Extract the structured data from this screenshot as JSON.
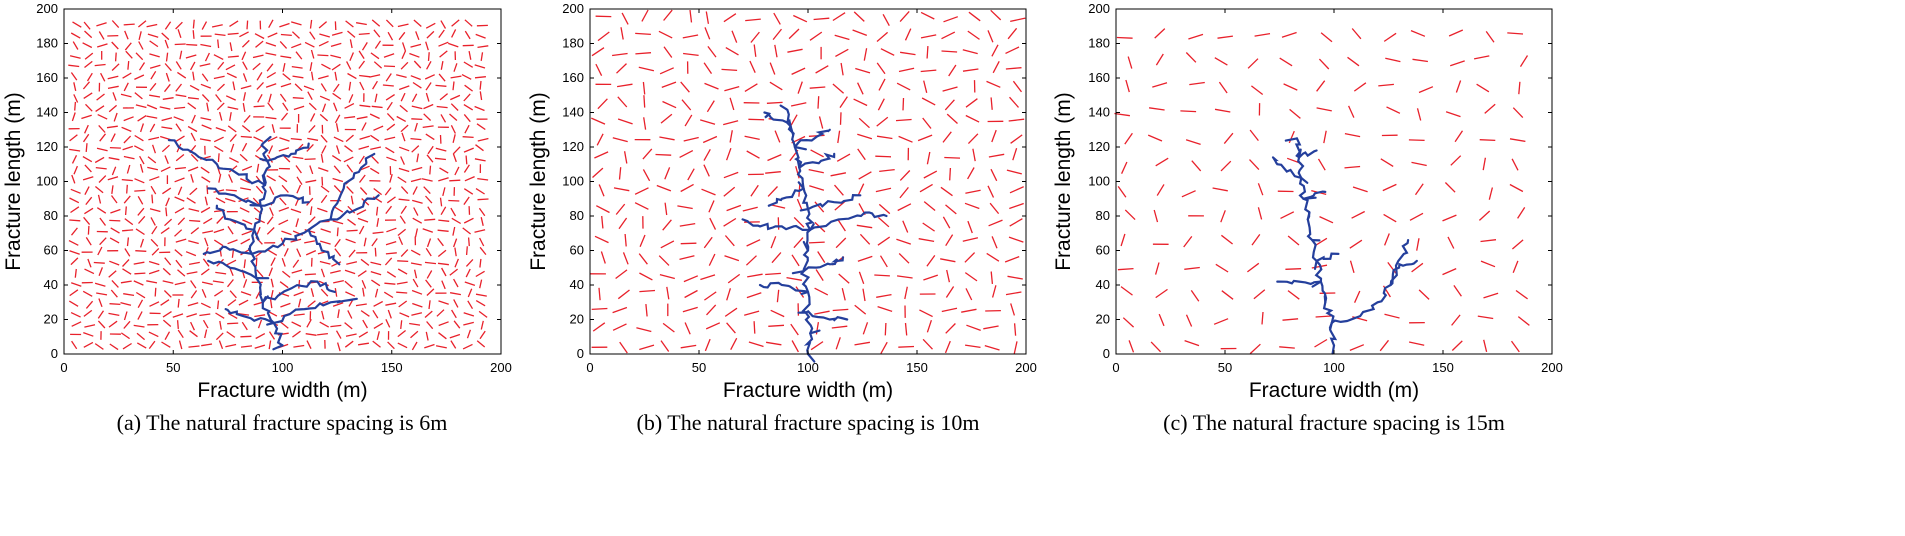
{
  "chart_data": [
    {
      "type": "scatter",
      "panel": "a",
      "caption": "(a) The natural fracture spacing is 6m",
      "xlabel": "Fracture width (m)",
      "ylabel": "Fracture length (m)",
      "xlim": [
        0,
        200
      ],
      "ylim": [
        0,
        200
      ],
      "xticks": [
        "0",
        "50",
        "100",
        "150",
        "200"
      ],
      "yticks": [
        "0",
        "20",
        "40",
        "60",
        "80",
        "100",
        "120",
        "140",
        "160",
        "180",
        "200"
      ],
      "series": [
        {
          "name": "natural fractures",
          "color": "#e8212b",
          "spacing_m": 6
        },
        {
          "name": "hydraulic fracture network",
          "color": "#243f9c",
          "root": [
            100,
            5
          ],
          "main_path": [
            [
              100,
              5
            ],
            [
              96,
              18
            ],
            [
              91,
              30
            ],
            [
              88,
              44
            ],
            [
              86,
              58
            ],
            [
              87,
              72
            ],
            [
              90,
              86
            ],
            [
              92,
              98
            ],
            [
              93,
              112
            ],
            [
              91,
              122
            ]
          ],
          "side_paths": [
            [
              [
                96,
                18
              ],
              [
                82,
                22
              ],
              [
                74,
                26
              ]
            ],
            [
              [
                96,
                18
              ],
              [
                110,
                26
              ],
              [
                122,
                30
              ],
              [
                134,
                32
              ]
            ],
            [
              [
                91,
                30
              ],
              [
                104,
                38
              ],
              [
                116,
                42
              ],
              [
                124,
                36
              ]
            ],
            [
              [
                88,
                44
              ],
              [
                76,
                50
              ],
              [
                66,
                54
              ]
            ],
            [
              [
                86,
                58
              ],
              [
                74,
                62
              ],
              [
                64,
                58
              ]
            ],
            [
              [
                86,
                58
              ],
              [
                100,
                64
              ],
              [
                112,
                72
              ],
              [
                122,
                78
              ],
              [
                134,
                84
              ],
              [
                144,
                92
              ]
            ],
            [
              [
                122,
                78
              ],
              [
                128,
                96
              ],
              [
                136,
                108
              ],
              [
                142,
                116
              ]
            ],
            [
              [
                87,
                72
              ],
              [
                76,
                78
              ],
              [
                70,
                86
              ]
            ],
            [
              [
                90,
                86
              ],
              [
                102,
                92
              ],
              [
                112,
                88
              ]
            ],
            [
              [
                90,
                86
              ],
              [
                78,
                92
              ],
              [
                66,
                96
              ]
            ],
            [
              [
                92,
                98
              ],
              [
                80,
                104
              ],
              [
                70,
                110
              ],
              [
                60,
                116
              ],
              [
                48,
                124
              ]
            ],
            [
              [
                93,
                112
              ],
              [
                104,
                116
              ],
              [
                112,
                122
              ]
            ],
            [
              [
                112,
                72
              ],
              [
                118,
                60
              ],
              [
                126,
                52
              ]
            ]
          ]
        }
      ]
    },
    {
      "type": "scatter",
      "panel": "b",
      "caption": "(b) The natural fracture spacing is 10m",
      "xlabel": "Fracture width (m)",
      "ylabel": "Fracture length (m)",
      "xlim": [
        0,
        200
      ],
      "ylim": [
        0,
        200
      ],
      "xticks": [
        "0",
        "50",
        "100",
        "150",
        "200"
      ],
      "yticks": [
        "0",
        "20",
        "40",
        "60",
        "80",
        "100",
        "120",
        "140",
        "160",
        "180",
        "200"
      ],
      "series": [
        {
          "name": "natural fractures",
          "color": "#e8212b",
          "spacing_m": 10
        },
        {
          "name": "hydraulic fracture network",
          "color": "#243f9c",
          "root": [
            100,
            0
          ],
          "main_path": [
            [
              100,
              0
            ],
            [
              101,
              12
            ],
            [
              99,
              24
            ],
            [
              100,
              36
            ],
            [
              98,
              48
            ],
            [
              100,
              60
            ],
            [
              101,
              72
            ],
            [
              100,
              84
            ],
            [
              98,
              96
            ],
            [
              96,
              108
            ],
            [
              94,
              120
            ],
            [
              92,
              132
            ],
            [
              90,
              142
            ]
          ],
          "side_paths": [
            [
              [
                99,
                24
              ],
              [
                110,
                20
              ],
              [
                118,
                20
              ]
            ],
            [
              [
                100,
                36
              ],
              [
                88,
                40
              ],
              [
                78,
                40
              ]
            ],
            [
              [
                98,
                48
              ],
              [
                110,
                52
              ],
              [
                116,
                56
              ]
            ],
            [
              [
                101,
                72
              ],
              [
                88,
                74
              ],
              [
                78,
                74
              ],
              [
                70,
                78
              ]
            ],
            [
              [
                101,
                72
              ],
              [
                114,
                78
              ],
              [
                126,
                82
              ],
              [
                136,
                80
              ]
            ],
            [
              [
                100,
                84
              ],
              [
                112,
                88
              ],
              [
                124,
                92
              ]
            ],
            [
              [
                98,
                96
              ],
              [
                88,
                90
              ],
              [
                82,
                86
              ]
            ],
            [
              [
                96,
                108
              ],
              [
                106,
                112
              ],
              [
                112,
                116
              ]
            ],
            [
              [
                92,
                132
              ],
              [
                84,
                136
              ],
              [
                80,
                140
              ]
            ],
            [
              [
                94,
                120
              ],
              [
                104,
                126
              ],
              [
                110,
                130
              ]
            ]
          ]
        }
      ]
    },
    {
      "type": "scatter",
      "panel": "c",
      "caption": "(c) The natural fracture spacing is 15m",
      "xlabel": "Fracture width (m)",
      "ylabel": "Fracture length (m)",
      "xlim": [
        0,
        200
      ],
      "ylim": [
        0,
        200
      ],
      "xticks": [
        "0",
        "50",
        "100",
        "150",
        "200"
      ],
      "yticks": [
        "0",
        "20",
        "40",
        "60",
        "80",
        "100",
        "120",
        "140",
        "160",
        "180",
        "200"
      ],
      "series": [
        {
          "name": "natural fractures",
          "color": "#e8212b",
          "spacing_m": 15
        },
        {
          "name": "hydraulic fracture network",
          "color": "#243f9c",
          "root": [
            100,
            5
          ],
          "main_path": [
            [
              100,
              5
            ],
            [
              99,
              18
            ],
            [
              96,
              30
            ],
            [
              94,
              42
            ],
            [
              92,
              54
            ],
            [
              90,
              66
            ],
            [
              88,
              78
            ],
            [
              86,
              90
            ],
            [
              85,
              102
            ],
            [
              84,
              114
            ],
            [
              83,
              125
            ]
          ],
          "side_paths": [
            [
              [
                99,
                18
              ],
              [
                112,
                22
              ],
              [
                120,
                30
              ],
              [
                126,
                40
              ],
              [
                130,
                52
              ],
              [
                138,
                54
              ]
            ],
            [
              [
                126,
                40
              ],
              [
                132,
                58
              ],
              [
                134,
                66
              ]
            ],
            [
              [
                94,
                42
              ],
              [
                84,
                42
              ],
              [
                74,
                42
              ]
            ],
            [
              [
                92,
                54
              ],
              [
                102,
                58
              ]
            ],
            [
              [
                86,
                90
              ],
              [
                96,
                94
              ]
            ],
            [
              [
                85,
                102
              ],
              [
                74,
                110
              ],
              [
                72,
                114
              ]
            ],
            [
              [
                84,
                114
              ],
              [
                92,
                118
              ]
            ]
          ]
        }
      ]
    }
  ]
}
